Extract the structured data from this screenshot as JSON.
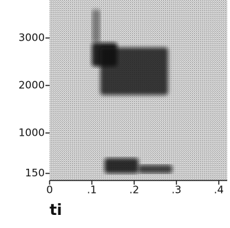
{
  "chart_data": {
    "type": "spectrogram",
    "title": "ti",
    "xlim": [
      0,
      0.42
    ],
    "xticks": [
      0,
      {
        "value": 0.1,
        "label": ".1"
      },
      {
        "value": 0.2,
        "label": ".2"
      },
      {
        "value": 0.3,
        "label": ".3"
      },
      {
        "value": 0.4,
        "label": ".4"
      }
    ],
    "ylim": [
      0,
      3800
    ],
    "yticks": [
      150,
      1000,
      2000,
      3000
    ],
    "color": "#111111",
    "regions": [
      {
        "x": [
          0.1,
          0.12
        ],
        "y": [
          2900,
          3600
        ],
        "level": 0.45
      },
      {
        "x": [
          0.1,
          0.16
        ],
        "y": [
          2400,
          2900
        ],
        "level": 0.9
      },
      {
        "x": [
          0.12,
          0.28
        ],
        "y": [
          1800,
          2800
        ],
        "level": 0.8
      },
      {
        "x": [
          0.13,
          0.21
        ],
        "y": [
          150,
          470
        ],
        "level": 0.85
      },
      {
        "x": [
          0.21,
          0.29
        ],
        "y": [
          150,
          330
        ],
        "level": 0.75
      }
    ]
  }
}
